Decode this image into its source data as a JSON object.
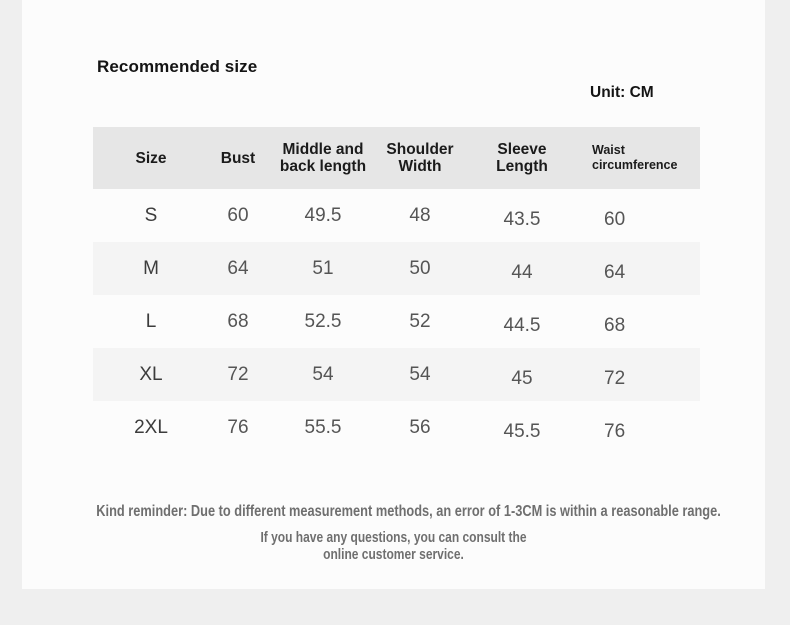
{
  "page": {
    "title": "Recommended size",
    "unit": "Unit: CM"
  },
  "colors": {
    "page_bg": "#efefef",
    "card_bg": "#fcfcfc",
    "header_row_bg": "#e6e6e6",
    "alt_row_bg": "#f4f4f4",
    "header_text": "#1b1b1b",
    "value_text": "#555555",
    "footer_text": "#6f6f6f"
  },
  "table": {
    "columns": [
      "Size",
      "Bust",
      "Middle and\nback length",
      "Shoulder\nWidth",
      "Sleeve\nLength",
      "Waist\ncircumference"
    ],
    "rows": [
      {
        "size": "S",
        "values": [
          "60",
          "49.5",
          "48",
          "43.5",
          "60"
        ]
      },
      {
        "size": "M",
        "values": [
          "64",
          "51",
          "50",
          "44",
          "64"
        ]
      },
      {
        "size": "L",
        "values": [
          "68",
          "52.5",
          "52",
          "44.5",
          "68"
        ]
      },
      {
        "size": "XL",
        "values": [
          "72",
          "54",
          "54",
          "45",
          "72"
        ]
      },
      {
        "size": "2XL",
        "values": [
          "76",
          "55.5",
          "56",
          "45.5",
          "76"
        ]
      }
    ]
  },
  "footer": {
    "line1": "Kind reminder: Due to different measurement methods, an error of 1-3CM is within a reasonable range.",
    "line2": "If you have any questions, you can consult the",
    "line3": "online customer service."
  }
}
